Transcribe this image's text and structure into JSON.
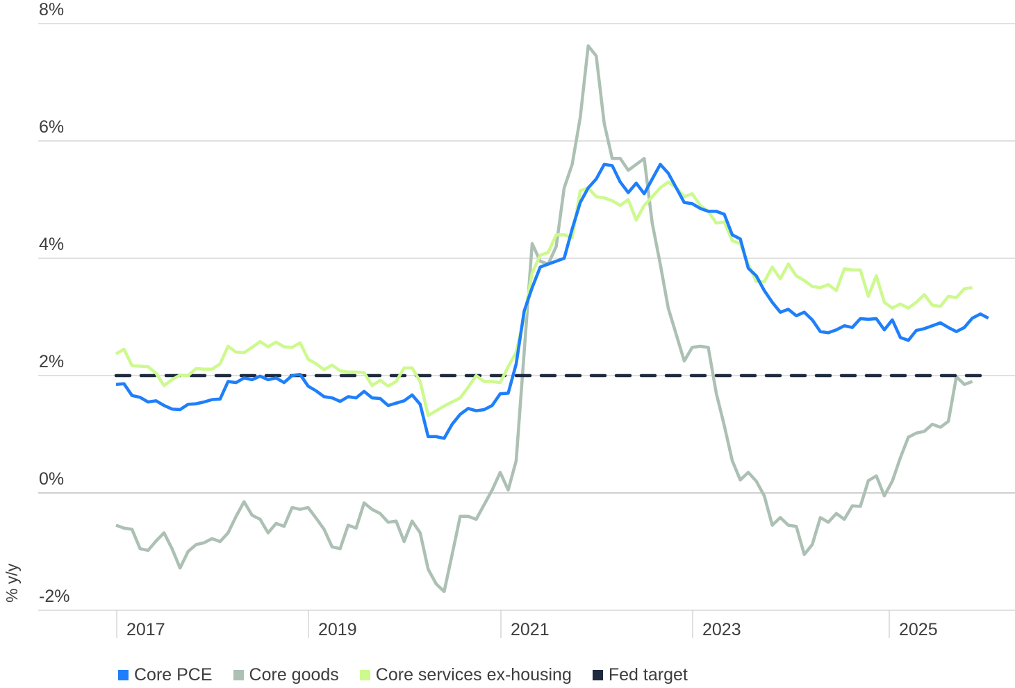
{
  "chart_data": {
    "type": "line",
    "title": "",
    "xlabel": "",
    "ylabel": "% y/y",
    "ylim": [
      -2,
      8
    ],
    "yticks": [
      "8%",
      "6%",
      "4%",
      "2%",
      "0%",
      "-2%"
    ],
    "ytick_values": [
      8,
      6,
      4,
      2,
      0,
      -2
    ],
    "xticks": [
      "2017",
      "2019",
      "2021",
      "2023",
      "2025"
    ],
    "x_start": "2017-01",
    "x_frequency": "monthly",
    "grid": true,
    "legend_position": "bottom",
    "series": [
      {
        "name": "Core PCE",
        "color": "#1f7ffa",
        "values": [
          1.85,
          1.86,
          1.66,
          1.63,
          1.55,
          1.57,
          1.49,
          1.43,
          1.42,
          1.51,
          1.52,
          1.55,
          1.59,
          1.6,
          1.9,
          1.88,
          1.96,
          1.93,
          1.99,
          1.93,
          1.96,
          1.88,
          2.0,
          2.02,
          1.82,
          1.74,
          1.64,
          1.62,
          1.56,
          1.64,
          1.62,
          1.73,
          1.62,
          1.61,
          1.49,
          1.53,
          1.57,
          1.67,
          1.51,
          0.96,
          0.96,
          0.93,
          1.17,
          1.34,
          1.44,
          1.4,
          1.42,
          1.49,
          1.69,
          1.7,
          2.2,
          3.1,
          3.5,
          3.85,
          3.9,
          3.95,
          4.0,
          4.5,
          4.95,
          5.2,
          5.35,
          5.6,
          5.58,
          5.3,
          5.12,
          5.28,
          5.1,
          5.35,
          5.6,
          5.45,
          5.2,
          4.95,
          4.93,
          4.85,
          4.8,
          4.8,
          4.75,
          4.4,
          4.33,
          3.83,
          3.7,
          3.45,
          3.25,
          3.08,
          3.13,
          3.02,
          3.08,
          2.95,
          2.75,
          2.73,
          2.78,
          2.85,
          2.82,
          2.97,
          2.96,
          2.97,
          2.78,
          2.95,
          2.65,
          2.6,
          2.77,
          2.8,
          2.85,
          2.9,
          2.82,
          2.75,
          2.82,
          2.98,
          3.05,
          2.98
        ]
      },
      {
        "name": "Core goods",
        "color": "#acc0b4",
        "values": [
          -0.55,
          -0.6,
          -0.62,
          -0.95,
          -0.98,
          -0.82,
          -0.68,
          -0.95,
          -1.28,
          -1.0,
          -0.88,
          -0.85,
          -0.78,
          -0.83,
          -0.68,
          -0.4,
          -0.15,
          -0.38,
          -0.45,
          -0.68,
          -0.52,
          -0.57,
          -0.25,
          -0.28,
          -0.25,
          -0.43,
          -0.62,
          -0.92,
          -0.95,
          -0.55,
          -0.6,
          -0.17,
          -0.28,
          -0.35,
          -0.5,
          -0.48,
          -0.83,
          -0.48,
          -0.68,
          -1.3,
          -1.55,
          -1.68,
          -1.05,
          -0.4,
          -0.4,
          -0.45,
          -0.2,
          0.05,
          0.35,
          0.05,
          0.55,
          2.4,
          4.25,
          3.95,
          3.9,
          4.2,
          5.2,
          5.6,
          6.4,
          7.62,
          7.45,
          6.3,
          5.7,
          5.7,
          5.5,
          5.6,
          5.7,
          4.6,
          3.9,
          3.15,
          2.7,
          2.25,
          2.48,
          2.5,
          2.48,
          1.7,
          1.15,
          0.55,
          0.22,
          0.35,
          0.2,
          -0.05,
          -0.55,
          -0.42,
          -0.55,
          -0.57,
          -1.05,
          -0.88,
          -0.42,
          -0.5,
          -0.35,
          -0.45,
          -0.22,
          -0.23,
          0.21,
          0.29,
          -0.05,
          0.2,
          0.6,
          0.95,
          1.02,
          1.05,
          1.17,
          1.12,
          1.22,
          1.98,
          1.85,
          1.9
        ]
      },
      {
        "name": "Core services ex-housing",
        "color": "#cdf98e",
        "values": [
          2.37,
          2.45,
          2.17,
          2.16,
          2.15,
          2.04,
          1.83,
          1.93,
          2.01,
          2.0,
          2.12,
          2.11,
          2.11,
          2.2,
          2.5,
          2.4,
          2.39,
          2.48,
          2.58,
          2.49,
          2.57,
          2.49,
          2.48,
          2.56,
          2.28,
          2.2,
          2.1,
          2.18,
          2.08,
          2.06,
          2.06,
          2.05,
          1.83,
          1.92,
          1.82,
          1.9,
          2.13,
          2.13,
          1.9,
          1.32,
          1.4,
          1.48,
          1.55,
          1.62,
          1.8,
          2.0,
          1.9,
          1.9,
          1.88,
          2.15,
          2.4,
          3.0,
          3.75,
          4.05,
          4.1,
          4.4,
          4.4,
          4.35,
          5.15,
          5.2,
          5.05,
          5.03,
          4.98,
          4.9,
          5.0,
          4.65,
          4.9,
          5.05,
          5.2,
          5.3,
          5.2,
          5.05,
          5.1,
          4.9,
          4.8,
          4.6,
          4.62,
          4.3,
          4.25,
          3.9,
          3.6,
          3.6,
          3.85,
          3.65,
          3.9,
          3.7,
          3.62,
          3.52,
          3.5,
          3.55,
          3.45,
          3.82,
          3.8,
          3.8,
          3.35,
          3.7,
          3.25,
          3.15,
          3.22,
          3.15,
          3.25,
          3.38,
          3.2,
          3.18,
          3.35,
          3.33,
          3.48,
          3.5
        ]
      },
      {
        "name": "Fed target",
        "color": "#1e2a3d",
        "values": [
          2.0
        ],
        "style": "dashed",
        "constant": 2.0
      }
    ]
  },
  "axis": {
    "yticks": [
      "8%",
      "6%",
      "4%",
      "2%",
      "0%",
      "-2%"
    ],
    "xticks": [
      "2017",
      "2019",
      "2021",
      "2023",
      "2025"
    ],
    "ylabel": "% y/y"
  },
  "legend": [
    {
      "label": "Core PCE",
      "color": "#1f7ffa"
    },
    {
      "label": "Core goods",
      "color": "#acc0b4"
    },
    {
      "label": "Core services ex-housing",
      "color": "#cdf98e"
    },
    {
      "label": "Fed target",
      "color": "#1e2a3d"
    }
  ]
}
